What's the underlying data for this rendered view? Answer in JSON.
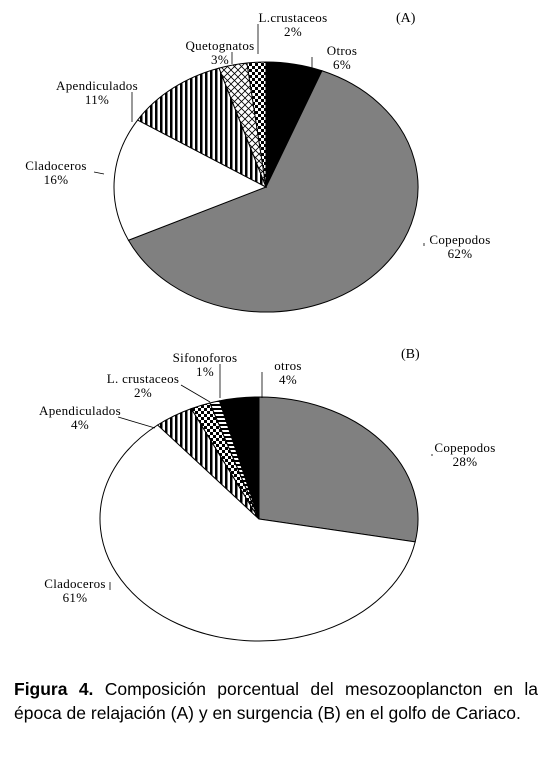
{
  "chart_data": [
    {
      "type": "pie",
      "panel_label": "(A)",
      "slices": [
        {
          "name": "Copepodos",
          "value": 62,
          "label": "62%",
          "color": "#808080",
          "pattern": "solid"
        },
        {
          "name": "Cladoceros",
          "value": 16,
          "label": "16%",
          "color": "#ffffff",
          "pattern": "solid"
        },
        {
          "name": "Apendiculados",
          "value": 11,
          "label": "11%",
          "color": "#ffffff",
          "pattern": "vertical-stripes"
        },
        {
          "name": "Quetognatos",
          "value": 3,
          "label": "3%",
          "color": "#ffffff",
          "pattern": "diagonal-crosshatch"
        },
        {
          "name": "L.crustaceos",
          "value": 2,
          "label": "2%",
          "color": "#ffffff",
          "pattern": "checkerboard"
        },
        {
          "name": "Otros",
          "value": 6,
          "label": "6%",
          "color": "#000000",
          "pattern": "solid"
        }
      ]
    },
    {
      "type": "pie",
      "panel_label": "(B)",
      "slices": [
        {
          "name": "Copepodos",
          "value": 28,
          "label": "28%",
          "color": "#808080",
          "pattern": "solid"
        },
        {
          "name": "Cladoceros",
          "value": 61,
          "label": "61%",
          "color": "#ffffff",
          "pattern": "solid"
        },
        {
          "name": "Apendiculados",
          "value": 4,
          "label": "4%",
          "color": "#ffffff",
          "pattern": "vertical-stripes"
        },
        {
          "name": "L. crustaceos",
          "value": 2,
          "label": "2%",
          "color": "#ffffff",
          "pattern": "checkerboard"
        },
        {
          "name": "Sifonoforos",
          "value": 1,
          "label": "1%",
          "color": "#ffffff",
          "pattern": "horizontal-stripes"
        },
        {
          "name": "otros",
          "value": 4,
          "label": "4%",
          "color": "#000000",
          "pattern": "solid"
        }
      ]
    }
  ],
  "caption": {
    "prefix": "Figura 4.",
    "text": " Composición porcentual del mesozooplancton en la época de relajación (A) y en surgencia (B) en el golfo de Cariaco."
  }
}
